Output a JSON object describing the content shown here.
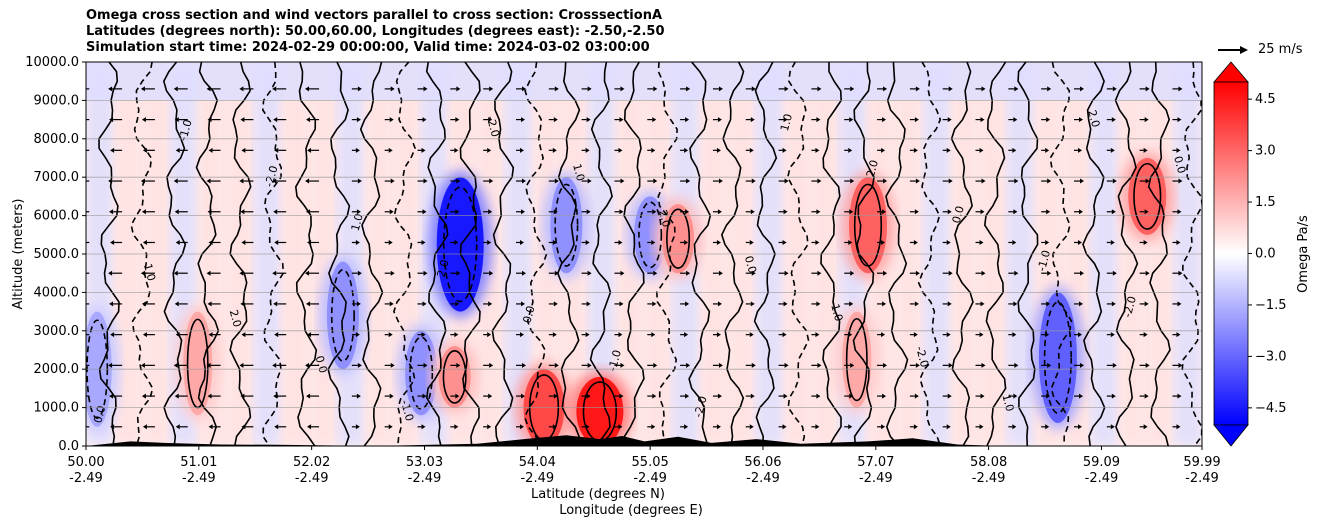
{
  "chart_data": {
    "type": "heatmap",
    "title_lines": [
      "Omega cross section and wind vectors parallel to cross section: CrosssectionA",
      "Latitudes (degrees north): 50.00,60.00, Longitudes (degrees east): -2.50,-2.50",
      "Simulation start time: 2024-02-29 00:00:00, Valid time: 2024-03-02 03:00:00"
    ],
    "ylabel": "Altitude (meters)",
    "xlabel_lines": [
      "Latitude (degrees N)",
      "Longitude (degrees E)"
    ],
    "ylim": [
      0,
      10000
    ],
    "yticks": [
      "0.0",
      "1000.0",
      "2000.0",
      "3000.0",
      "4000.0",
      "5000.0",
      "6000.0",
      "7000.0",
      "8000.0",
      "9000.0",
      "10000.0"
    ],
    "xlim": [
      50.0,
      59.99
    ],
    "xticks": [
      {
        "lat": "50.00",
        "lon": "-2.49"
      },
      {
        "lat": "51.01",
        "lon": "-2.49"
      },
      {
        "lat": "52.02",
        "lon": "-2.49"
      },
      {
        "lat": "53.03",
        "lon": "-2.49"
      },
      {
        "lat": "54.04",
        "lon": "-2.49"
      },
      {
        "lat": "55.05",
        "lon": "-2.49"
      },
      {
        "lat": "56.06",
        "lon": "-2.49"
      },
      {
        "lat": "57.07",
        "lon": "-2.49"
      },
      {
        "lat": "58.08",
        "lon": "-2.49"
      },
      {
        "lat": "59.09",
        "lon": "-2.49"
      },
      {
        "lat": "59.99",
        "lon": "-2.49"
      }
    ],
    "grid": true,
    "colorbar": {
      "label": "Omega Pa/s",
      "range": [
        -5.0,
        5.0
      ],
      "ticks": [
        "4.5",
        "3.0",
        "1.5",
        "0.0",
        "−1.5",
        "−3.0",
        "−4.5"
      ],
      "extend": "both"
    },
    "contour_labels": [
      "0.0",
      "1.0",
      "-1.0",
      "2.0",
      "-2.0"
    ],
    "vector_reference": "25 m/s",
    "omega_features": [
      {
        "lat": 50.1,
        "alt_range": [
          500,
          3500
        ],
        "omega": -1.5
      },
      {
        "lat": 51.0,
        "alt_range": [
          800,
          3500
        ],
        "omega": 1.5
      },
      {
        "lat": 52.3,
        "alt_range": [
          2000,
          4800
        ],
        "omega": -2.0
      },
      {
        "lat": 53.35,
        "alt_range": [
          3500,
          7000
        ],
        "omega": -4.5
      },
      {
        "lat": 53.0,
        "alt_range": [
          800,
          3000
        ],
        "omega": -2.0
      },
      {
        "lat": 53.3,
        "alt_range": [
          1000,
          2600
        ],
        "omega": 2.0
      },
      {
        "lat": 54.1,
        "alt_range": [
          0,
          2000
        ],
        "omega": 3.5
      },
      {
        "lat": 54.6,
        "alt_range": [
          0,
          1800
        ],
        "omega": 4.5
      },
      {
        "lat": 54.3,
        "alt_range": [
          4500,
          7000
        ],
        "omega": -2.0
      },
      {
        "lat": 55.05,
        "alt_range": [
          4500,
          6500
        ],
        "omega": -2.0
      },
      {
        "lat": 55.3,
        "alt_range": [
          4500,
          6300
        ],
        "omega": 2.0
      },
      {
        "lat": 57.0,
        "alt_range": [
          4500,
          7000
        ],
        "omega": 3.0
      },
      {
        "lat": 56.9,
        "alt_range": [
          1000,
          3500
        ],
        "omega": 1.5
      },
      {
        "lat": 58.7,
        "alt_range": [
          600,
          4000
        ],
        "omega": -3.0
      },
      {
        "lat": 59.5,
        "alt_range": [
          5500,
          7500
        ],
        "omega": 3.0
      }
    ]
  }
}
